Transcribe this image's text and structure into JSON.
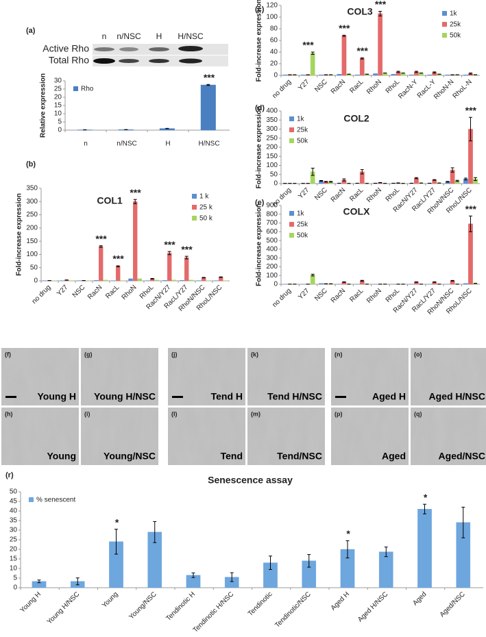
{
  "blot": {
    "panel": "(a)",
    "rows": [
      "Active Rho",
      "Total Rho"
    ],
    "lanes": [
      "n",
      "n/NSC",
      "H",
      "H/NSC"
    ]
  },
  "chart_data": [
    {
      "type": "bar",
      "panel": "(a)",
      "ylabel": "Relative expression",
      "categories": [
        "n",
        "n/NSC",
        "H",
        "H/NSC"
      ],
      "series": [
        {
          "name": "Rho",
          "color": "#4a7fc1",
          "values": [
            0.2,
            0.3,
            1,
            27.5
          ],
          "errors": [
            0.05,
            0.05,
            0.1,
            0.3
          ]
        }
      ],
      "ylim": [
        0,
        30
      ],
      "yticks": [
        0,
        5,
        10,
        15,
        20,
        25,
        30
      ],
      "legend": "upper left",
      "rotate_labels": false,
      "annotations": [
        {
          "text": "***",
          "x": "H/NSC"
        }
      ]
    },
    {
      "type": "bar",
      "panel": "(b)",
      "title": "COL1",
      "ylabel": "Fold-increase expression",
      "categories": [
        "no drug",
        "Y27",
        "NSC",
        "RacN",
        "RacL",
        "RhoN",
        "RhoL",
        "RacN/Y27",
        "RacL/Y27",
        "RhoN/NSC",
        "RhoL/NSC"
      ],
      "series": [
        {
          "name": "1 k",
          "color": "#5b8fd0",
          "values": [
            1,
            1,
            1,
            2,
            1,
            8,
            1,
            2,
            2,
            1,
            1
          ]
        },
        {
          "name": "25 k",
          "color": "#e46a6a",
          "values": [
            1,
            3,
            1,
            130,
            55,
            300,
            8,
            105,
            88,
            12,
            14
          ],
          "errors": [
            0,
            0.5,
            0,
            3,
            2,
            8,
            1,
            6,
            5,
            1,
            1
          ]
        },
        {
          "name": "50 k",
          "color": "#a4d65e",
          "values": [
            1,
            1,
            1,
            3,
            1,
            8,
            3,
            3,
            3,
            1,
            1
          ]
        }
      ],
      "ylim": [
        0,
        350
      ],
      "yticks": [
        0,
        50,
        100,
        150,
        200,
        250,
        300,
        350
      ],
      "legend": "upper right",
      "rotate_labels": true,
      "annotations": [
        {
          "text": "***",
          "x": "RacN"
        },
        {
          "text": "***",
          "x": "RacL"
        },
        {
          "text": "***",
          "x": "RhoN"
        },
        {
          "text": "***",
          "x": "RacN/Y27"
        },
        {
          "text": "***",
          "x": "RacL/Y27"
        }
      ]
    },
    {
      "type": "bar",
      "panel": "(c)",
      "title": "COL3",
      "ylabel": "Fold-increase expression",
      "categories": [
        "no drug",
        "Y27",
        "NSC",
        "RacN",
        "RacL",
        "RhoN",
        "RhoL",
        "RacN-Y",
        "RacL-Y",
        "RhoN-N",
        "RhoL-N"
      ],
      "series": [
        {
          "name": "1k",
          "color": "#5b8fd0",
          "values": [
            1,
            1,
            1,
            2,
            1,
            3,
            2,
            1,
            1,
            1,
            1
          ]
        },
        {
          "name": "25k",
          "color": "#e46a6a",
          "values": [
            1,
            1,
            1,
            68,
            29,
            106,
            6,
            6,
            5,
            1,
            3
          ],
          "errors": [
            0,
            0,
            0,
            1,
            1,
            4,
            1,
            1,
            1,
            0,
            1
          ]
        },
        {
          "name": "50k",
          "color": "#a4d65e",
          "values": [
            1,
            38,
            1,
            2,
            2,
            4,
            4,
            4,
            2,
            1,
            1
          ],
          "errors": [
            0,
            2,
            0,
            0,
            0,
            0,
            0,
            0,
            0,
            0,
            0
          ]
        }
      ],
      "ylim": [
        0,
        120
      ],
      "yticks": [
        0,
        20,
        40,
        60,
        80,
        100,
        120
      ],
      "legend": "upper right",
      "rotate_labels": true,
      "annotations": [
        {
          "text": "***",
          "x": "Y27"
        },
        {
          "text": "***",
          "x": "RacN"
        },
        {
          "text": "***",
          "x": "RacL"
        },
        {
          "text": "***",
          "x": "RhoN"
        }
      ]
    },
    {
      "type": "bar",
      "panel": "(d)",
      "title": "COL2",
      "ylabel": "Fold-increase expression",
      "categories": [
        "no drug",
        "Y27",
        "NSC",
        "RacN",
        "RacL",
        "RhoN",
        "RhoL",
        "RacN/Y27",
        "RacL/Y27",
        "RhoN/NSC",
        "RhoL/NSC"
      ],
      "series": [
        {
          "name": "1k",
          "color": "#5b8fd0",
          "values": [
            1,
            1,
            15,
            2,
            2,
            2,
            2,
            2,
            2,
            10,
            25
          ],
          "errors": [
            0,
            0,
            2,
            0,
            0,
            0,
            0,
            0,
            0,
            2,
            5
          ]
        },
        {
          "name": "25k",
          "color": "#e46a6a",
          "values": [
            1,
            1,
            10,
            20,
            65,
            5,
            3,
            30,
            20,
            75,
            300
          ],
          "errors": [
            0,
            0,
            2,
            6,
            12,
            1,
            1,
            3,
            2,
            12,
            65
          ]
        },
        {
          "name": "50k",
          "color": "#a4d65e",
          "values": [
            1,
            65,
            10,
            1,
            1,
            1,
            1,
            3,
            3,
            15,
            25
          ],
          "errors": [
            0,
            20,
            2,
            0,
            0,
            0,
            0,
            0,
            0,
            3,
            8
          ]
        }
      ],
      "ylim": [
        0,
        400
      ],
      "yticks": [
        0,
        50,
        100,
        150,
        200,
        250,
        300,
        350,
        400
      ],
      "legend": "upper left",
      "rotate_labels": true,
      "annotations": [
        {
          "text": "***",
          "x": "RhoL/NSC"
        }
      ]
    },
    {
      "type": "bar",
      "panel": "(e)",
      "title": "COLX",
      "ylabel": "Fold-increase expression",
      "categories": [
        "no drug",
        "Y27",
        "NSC",
        "RacN",
        "RacL",
        "RhoN",
        "RhoL",
        "RacN/Y27",
        "RacL/Y27",
        "RhoN/NSC",
        "RhoL/NSC"
      ],
      "series": [
        {
          "name": "1k",
          "color": "#5b8fd0",
          "values": [
            1,
            1,
            10,
            2,
            2,
            1,
            1,
            1,
            1,
            2,
            10
          ]
        },
        {
          "name": "25k",
          "color": "#e46a6a",
          "values": [
            1,
            1,
            5,
            25,
            40,
            1,
            1,
            25,
            25,
            40,
            690
          ],
          "errors": [
            0,
            0,
            1,
            3,
            5,
            0,
            0,
            3,
            3,
            4,
            90
          ]
        },
        {
          "name": "50k",
          "color": "#a4d65e",
          "values": [
            1,
            105,
            5,
            1,
            1,
            1,
            1,
            1,
            1,
            1,
            10
          ],
          "errors": [
            0,
            10,
            0,
            0,
            0,
            0,
            0,
            0,
            0,
            0,
            1
          ]
        }
      ],
      "ylim": [
        0,
        900
      ],
      "yticks": [
        0,
        100,
        200,
        300,
        400,
        500,
        600,
        700,
        800,
        900
      ],
      "legend": "upper left",
      "rotate_labels": true,
      "annotations": [
        {
          "text": "***",
          "x": "RhoL/NSC"
        }
      ]
    },
    {
      "type": "bar",
      "panel": "(r)",
      "title": "Senescence assay",
      "categories": [
        "Young H",
        "Young H/NSC",
        "Young",
        "Young/NSC",
        "Tendinotic H",
        "Tendinotic H/NSC",
        "Tendinotic",
        "Tendinotic/NSC",
        "Aged H",
        "Aged H/NSC",
        "Aged",
        "Aged/NSC"
      ],
      "series": [
        {
          "name": "% senescent",
          "color": "#6ea6de",
          "values": [
            3.3,
            3.3,
            24,
            29,
            6.5,
            5.5,
            13,
            14,
            20,
            18.7,
            41,
            34
          ],
          "errors": [
            0.7,
            1.8,
            6.5,
            5.5,
            1.2,
            2.3,
            3.5,
            3.3,
            4.5,
            2.5,
            2.5,
            8
          ]
        }
      ],
      "ylim": [
        0,
        50
      ],
      "yticks": [
        0,
        5,
        10,
        15,
        20,
        25,
        30,
        35,
        40,
        45,
        50
      ],
      "legend": "upper left",
      "rotate_labels": true,
      "annotations": [
        {
          "text": "*",
          "x": "Young"
        },
        {
          "text": "*",
          "x": "Aged H"
        },
        {
          "text": "*",
          "x": "Aged"
        }
      ]
    }
  ],
  "micrographs": [
    {
      "panel": "(f)",
      "label": "Young H"
    },
    {
      "panel": "(g)",
      "label": "Young H/NSC"
    },
    {
      "panel": "(h)",
      "label": "Young"
    },
    {
      "panel": "(i)",
      "label": "Young/NSC"
    },
    {
      "panel": "(j)",
      "label": "Tend H"
    },
    {
      "panel": "(k)",
      "label": "Tend H/NSC"
    },
    {
      "panel": "(l)",
      "label": "Tend"
    },
    {
      "panel": "(m)",
      "label": "Tend/NSC"
    },
    {
      "panel": "(n)",
      "label": "Aged H"
    },
    {
      "panel": "(o)",
      "label": "Aged H/NSC"
    },
    {
      "panel": "(p)",
      "label": "Aged"
    },
    {
      "panel": "(q)",
      "label": "Aged/NSC"
    }
  ]
}
